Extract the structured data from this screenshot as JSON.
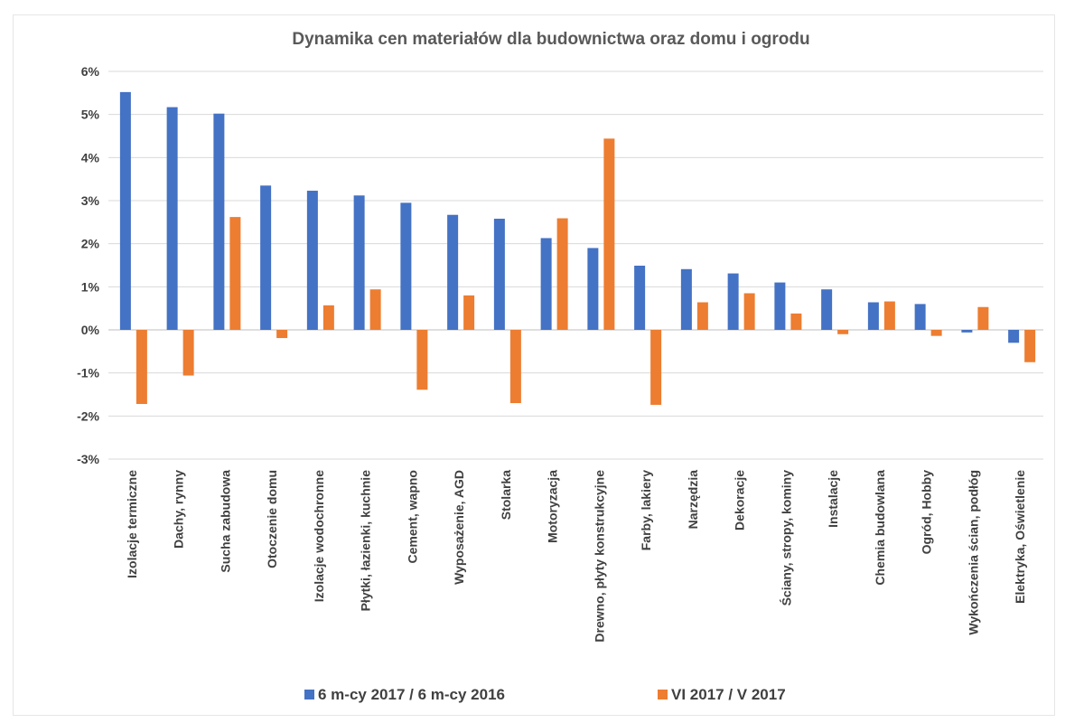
{
  "chart_data": {
    "type": "bar",
    "title": "Dynamika cen materiałów dla budownictwa oraz domu i ogrodu",
    "xlabel": "",
    "ylabel": "",
    "ylim": [
      -3,
      6
    ],
    "yticks": [
      6,
      5,
      4,
      3,
      2,
      1,
      0,
      -1,
      -2,
      -3
    ],
    "ytick_labels": [
      "6%",
      "5%",
      "4%",
      "3%",
      "2%",
      "1%",
      "0%",
      "-1%",
      "-2%",
      "-3%"
    ],
    "grid": true,
    "legend_position": "bottom",
    "categories": [
      "Izolacje termiczne",
      "Dachy, rynny",
      "Sucha zabudowa",
      "Otoczenie domu",
      "Izolacje wodochronne",
      "Płytki, łazienki, kuchnie",
      "Cement, wapno",
      "Wyposażenie, AGD",
      "Stolarka",
      "Motoryzacja",
      "Drewno, płyty konstrukcyjne",
      "Farby, lakiery",
      "Narzędzia",
      "Dekoracje",
      "Ściany, stropy, kominy",
      "Instalacje",
      "Chemia budowlana",
      "Ogród, Hobby",
      "Wykończenia ścian, podłóg",
      "Elektryka, Oświetlenie"
    ],
    "series": [
      {
        "name": "6 m-cy 2017 / 6 m-cy 2016",
        "color": "#4472C4",
        "values": [
          5.52,
          5.17,
          5.02,
          3.35,
          3.23,
          3.12,
          2.95,
          2.67,
          2.58,
          2.13,
          1.9,
          1.49,
          1.41,
          1.31,
          1.1,
          0.94,
          0.64,
          0.6,
          -0.06,
          -0.3
        ]
      },
      {
        "name": "VI 2017 / V 2017",
        "color": "#ED7D31",
        "values": [
          -1.72,
          -1.06,
          2.62,
          -0.19,
          0.57,
          0.94,
          -1.39,
          0.8,
          -1.7,
          2.59,
          4.44,
          -1.74,
          0.64,
          0.85,
          0.38,
          -0.1,
          0.66,
          -0.14,
          0.53,
          -0.75
        ]
      }
    ]
  }
}
